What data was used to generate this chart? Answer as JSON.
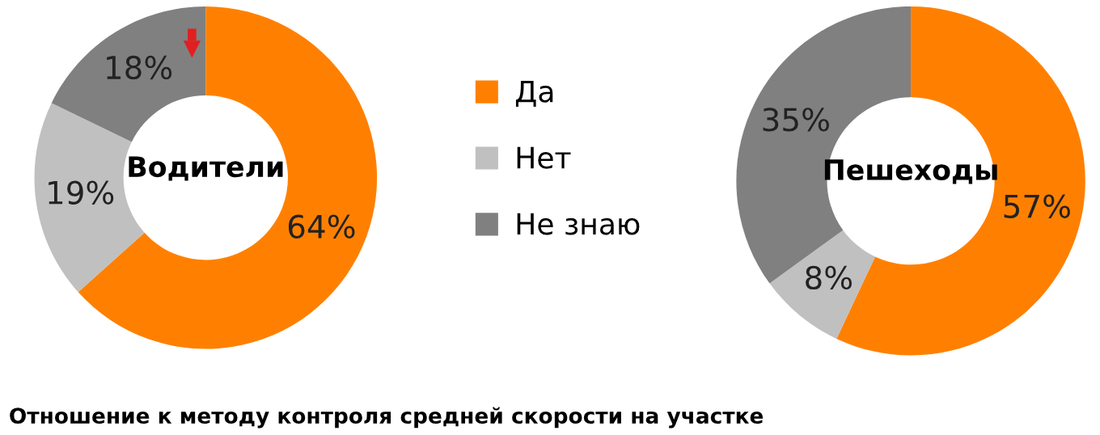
{
  "chart_data": [
    {
      "type": "donut",
      "title": "Водители",
      "categories": [
        "Да",
        "Нет",
        "Не знаю"
      ],
      "values": [
        64,
        19,
        18
      ],
      "value_labels": [
        "64%",
        "19%",
        "18%"
      ],
      "colors": [
        "#ff8000",
        "#c0c0c0",
        "#808080"
      ],
      "legend": "right",
      "annotations": [
        "Отношение к методу контроля средней скорости на участке"
      ]
    },
    {
      "type": "donut",
      "title": "Пешеходы",
      "categories": [
        null,
        null,
        null
      ],
      "values": [
        57,
        8,
        35
      ],
      "value_labels": [
        "57%",
        "8%",
        "35%"
      ],
      "colors": [
        "#ff8000",
        "#c0c0c0",
        "#808080"
      ]
    }
  ]
}
